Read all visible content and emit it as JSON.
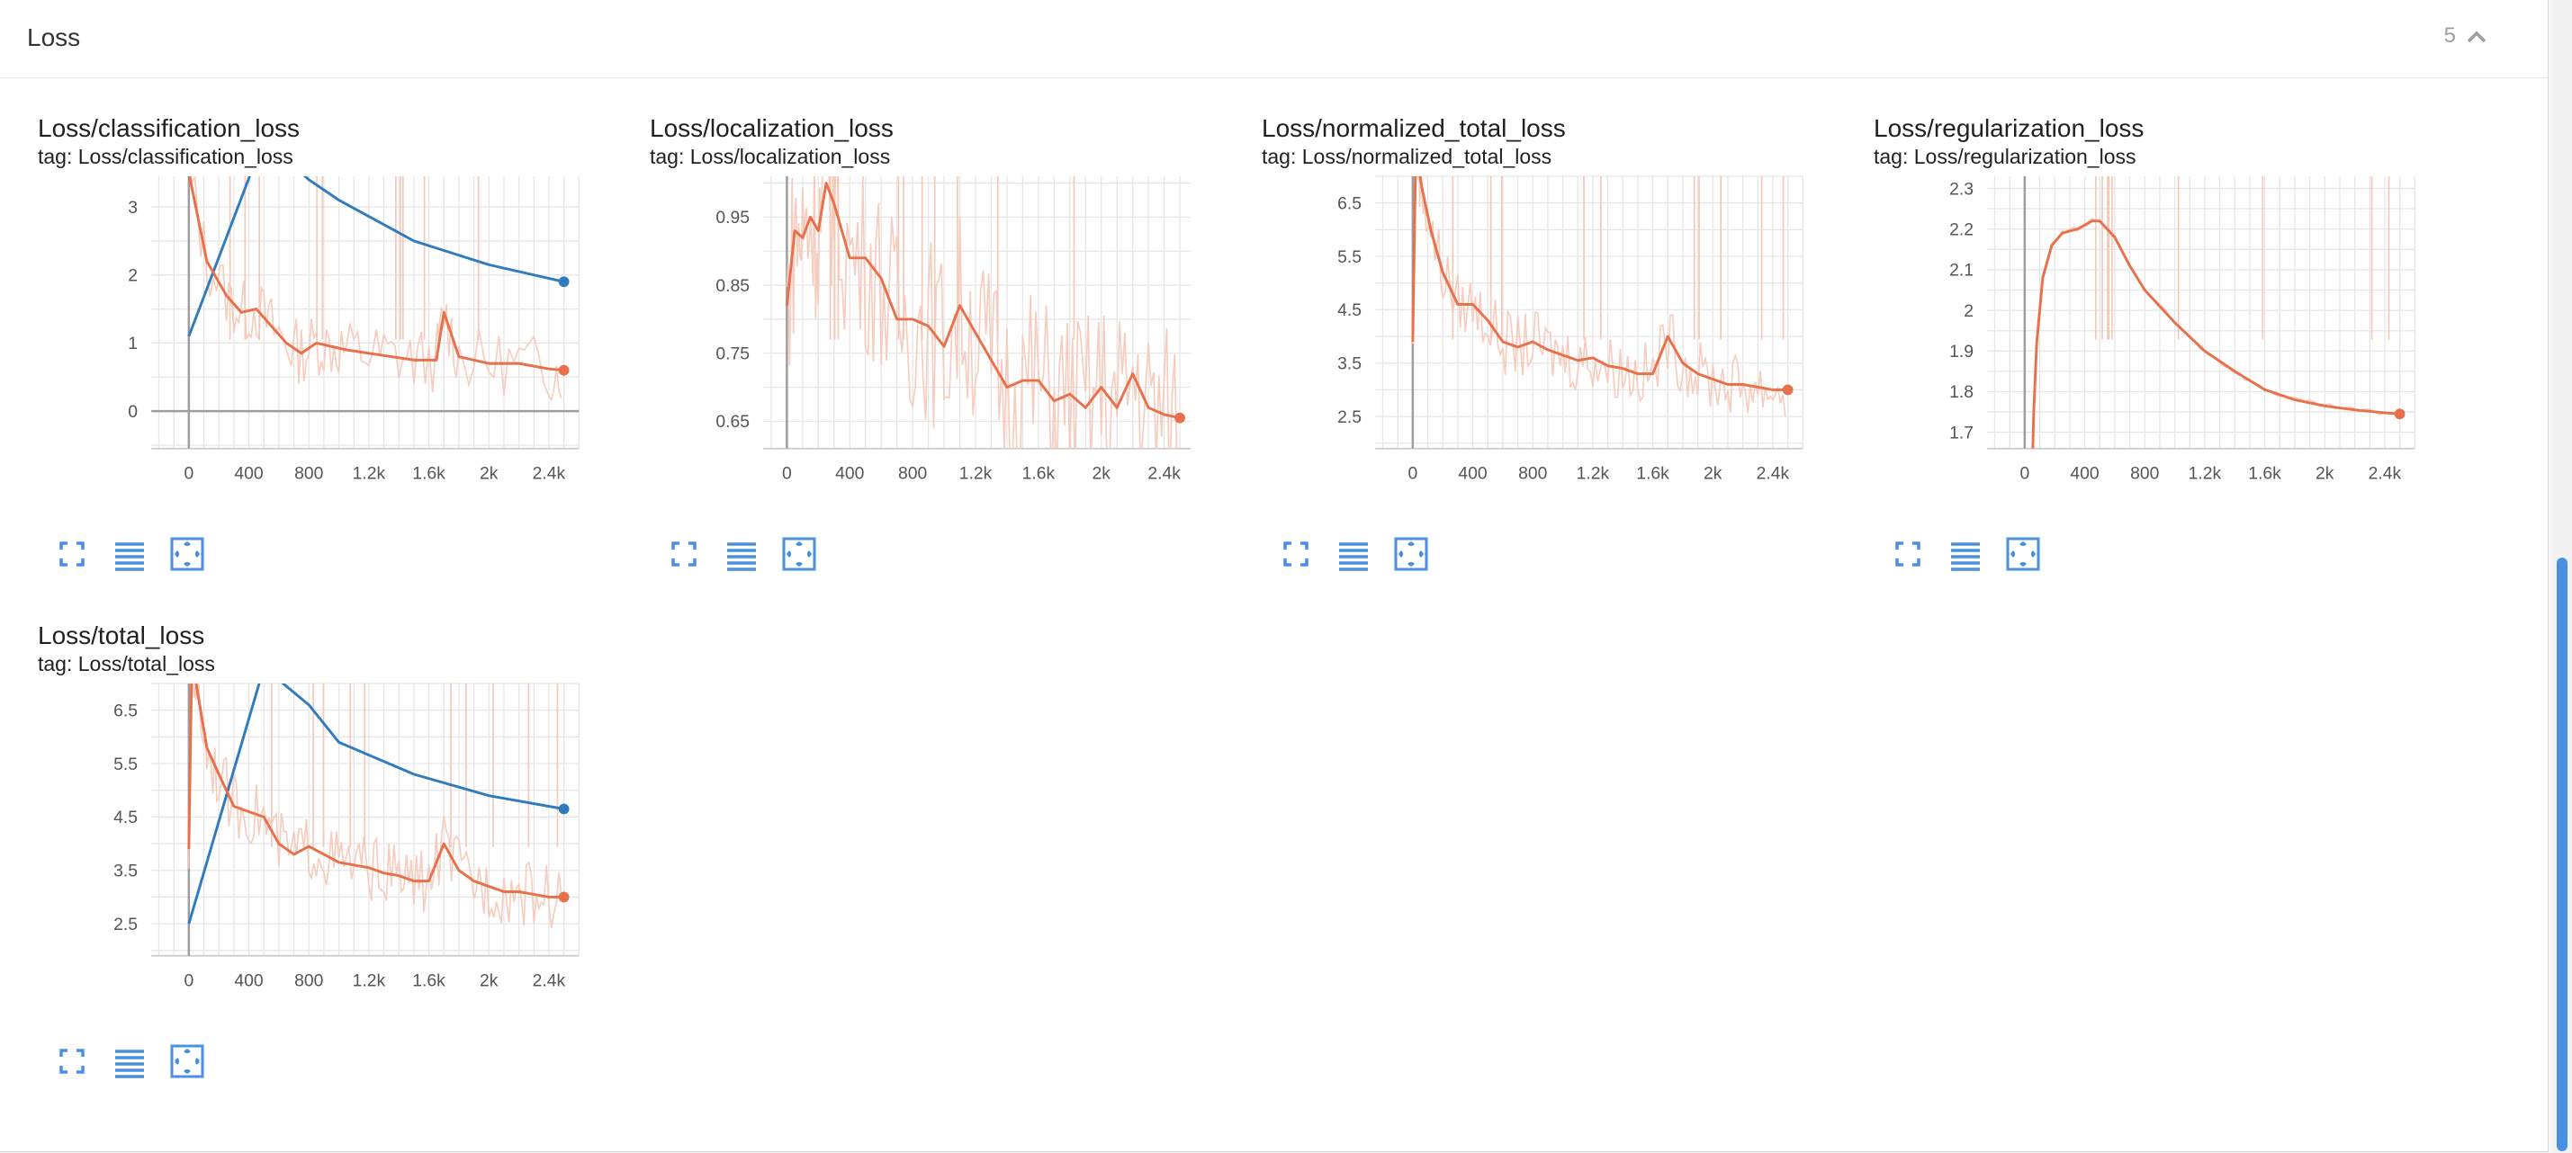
{
  "section": {
    "title": "Loss",
    "count": "5"
  },
  "icons": {
    "collapse": "chevron-up-icon",
    "expand": "fullscreen-icon",
    "data": "list-icon",
    "fit": "fit-domain-icon"
  },
  "colors": {
    "smoothed": "#e8704a",
    "raw": "#f6c8b8",
    "blue_run": "#2f7bbd",
    "blue_raw": "#b9d3ea",
    "icon": "#4a90e2"
  },
  "panels": [
    {
      "title": "Loss/classification_loss",
      "tag": "tag: Loss/classification_loss"
    },
    {
      "title": "Loss/localization_loss",
      "tag": "tag: Loss/localization_loss"
    },
    {
      "title": "Loss/normalized_total_loss",
      "tag": "tag: Loss/normalized_total_loss"
    },
    {
      "title": "Loss/regularization_loss",
      "tag": "tag: Loss/regularization_loss"
    },
    {
      "title": "Loss/total_loss",
      "tag": "tag: Loss/total_loss"
    }
  ],
  "chart_data": [
    {
      "type": "line",
      "title": "Loss/classification_loss",
      "x_ticks": [
        "0",
        "400",
        "800",
        "1.2k",
        "1.6k",
        "2k",
        "2.4k"
      ],
      "y_ticks": [
        "0",
        "1",
        "2",
        "3"
      ],
      "xlim": [
        -250,
        2600
      ],
      "ylim": [
        -0.55,
        3.45
      ],
      "series": [
        {
          "x": [
            0,
            120,
            250,
            350,
            450,
            550,
            650,
            750,
            850,
            950,
            1050,
            1200,
            1350,
            1500,
            1650,
            1700,
            1800,
            2000,
            2200,
            2400,
            2500
          ],
          "y": [
            3.5,
            2.2,
            1.7,
            1.45,
            1.5,
            1.25,
            1.0,
            0.85,
            1.0,
            0.95,
            0.9,
            0.85,
            0.8,
            0.75,
            0.75,
            1.45,
            0.8,
            0.7,
            0.7,
            0.62,
            0.6
          ]
        },
        {
          "x": [
            0,
            500,
            800,
            1000,
            1500,
            2000,
            2500
          ],
          "y": [
            1.1,
            4.0,
            3.4,
            3.1,
            2.5,
            2.15,
            1.9
          ]
        }
      ]
    },
    {
      "type": "line",
      "title": "Loss/localization_loss",
      "x_ticks": [
        "0",
        "400",
        "800",
        "1.2k",
        "1.6k",
        "2k",
        "2.4k"
      ],
      "y_ticks": [
        "0.65",
        "0.75",
        "0.85",
        "0.95"
      ],
      "xlim": [
        -150,
        2570
      ],
      "ylim": [
        0.61,
        1.01
      ],
      "series": [
        {
          "x": [
            0,
            50,
            100,
            150,
            200,
            250,
            300,
            400,
            500,
            600,
            700,
            800,
            900,
            1000,
            1100,
            1200,
            1300,
            1400,
            1500,
            1600,
            1700,
            1800,
            1900,
            2000,
            2100,
            2200,
            2300,
            2400,
            2500
          ],
          "y": [
            0.82,
            0.93,
            0.92,
            0.95,
            0.93,
            1.0,
            0.97,
            0.89,
            0.89,
            0.86,
            0.8,
            0.8,
            0.79,
            0.76,
            0.82,
            0.78,
            0.74,
            0.7,
            0.71,
            0.71,
            0.68,
            0.69,
            0.67,
            0.7,
            0.67,
            0.72,
            0.67,
            0.66,
            0.655
          ]
        }
      ]
    },
    {
      "type": "line",
      "title": "Loss/normalized_total_loss",
      "x_ticks": [
        "0",
        "400",
        "800",
        "1.2k",
        "1.6k",
        "2k",
        "2.4k"
      ],
      "y_ticks": [
        "2.5",
        "3.5",
        "4.5",
        "5.5",
        "6.5"
      ],
      "xlim": [
        -250,
        2600
      ],
      "ylim": [
        1.9,
        7.0
      ],
      "series": [
        {
          "x": [
            0,
            20,
            60,
            120,
            200,
            300,
            400,
            500,
            600,
            700,
            800,
            900,
            1000,
            1100,
            1200,
            1300,
            1400,
            1500,
            1600,
            1700,
            1800,
            1900,
            2000,
            2100,
            2200,
            2300,
            2400,
            2500
          ],
          "y": [
            3.9,
            7.5,
            6.8,
            6.0,
            5.2,
            4.6,
            4.6,
            4.3,
            3.9,
            3.8,
            3.9,
            3.75,
            3.65,
            3.55,
            3.6,
            3.45,
            3.4,
            3.3,
            3.3,
            4.0,
            3.5,
            3.3,
            3.2,
            3.1,
            3.1,
            3.05,
            3.0,
            3.0
          ]
        }
      ]
    },
    {
      "type": "line",
      "title": "Loss/regularization_loss",
      "x_ticks": [
        "0",
        "400",
        "800",
        "1.2k",
        "1.6k",
        "2k",
        "2.4k"
      ],
      "y_ticks": [
        "1.7",
        "1.8",
        "1.9",
        "2",
        "2.1",
        "2.2",
        "2.3"
      ],
      "xlim": [
        -250,
        2600
      ],
      "ylim": [
        1.66,
        2.33
      ],
      "series": [
        {
          "x": [
            50,
            60,
            80,
            120,
            180,
            250,
            350,
            450,
            500,
            600,
            700,
            800,
            1000,
            1200,
            1400,
            1600,
            1800,
            2000,
            2200,
            2400,
            2500
          ],
          "y": [
            1.6,
            1.75,
            1.92,
            2.08,
            2.16,
            2.19,
            2.2,
            2.22,
            2.22,
            2.18,
            2.11,
            2.05,
            1.97,
            1.9,
            1.85,
            1.805,
            1.78,
            1.765,
            1.755,
            1.748,
            1.745
          ]
        }
      ]
    },
    {
      "type": "line",
      "title": "Loss/total_loss",
      "x_ticks": [
        "0",
        "400",
        "800",
        "1.2k",
        "1.6k",
        "2k",
        "2.4k"
      ],
      "y_ticks": [
        "2.5",
        "3.5",
        "4.5",
        "5.5",
        "6.5"
      ],
      "xlim": [
        -250,
        2600
      ],
      "ylim": [
        1.9,
        7.0
      ],
      "series": [
        {
          "x": [
            0,
            20,
            60,
            120,
            200,
            300,
            400,
            500,
            600,
            700,
            800,
            900,
            1000,
            1100,
            1200,
            1300,
            1400,
            1500,
            1600,
            1700,
            1800,
            1900,
            2000,
            2100,
            2200,
            2300,
            2400,
            2500
          ],
          "y": [
            3.9,
            7.5,
            6.8,
            5.8,
            5.3,
            4.7,
            4.6,
            4.5,
            4.0,
            3.8,
            3.95,
            3.8,
            3.65,
            3.6,
            3.55,
            3.45,
            3.4,
            3.3,
            3.3,
            4.0,
            3.5,
            3.3,
            3.2,
            3.1,
            3.1,
            3.05,
            3.0,
            3.0
          ]
        },
        {
          "x": [
            0,
            500,
            800,
            1000,
            1500,
            2000,
            2500
          ],
          "y": [
            2.5,
            7.3,
            6.6,
            5.9,
            5.3,
            4.9,
            4.65
          ]
        }
      ]
    }
  ]
}
